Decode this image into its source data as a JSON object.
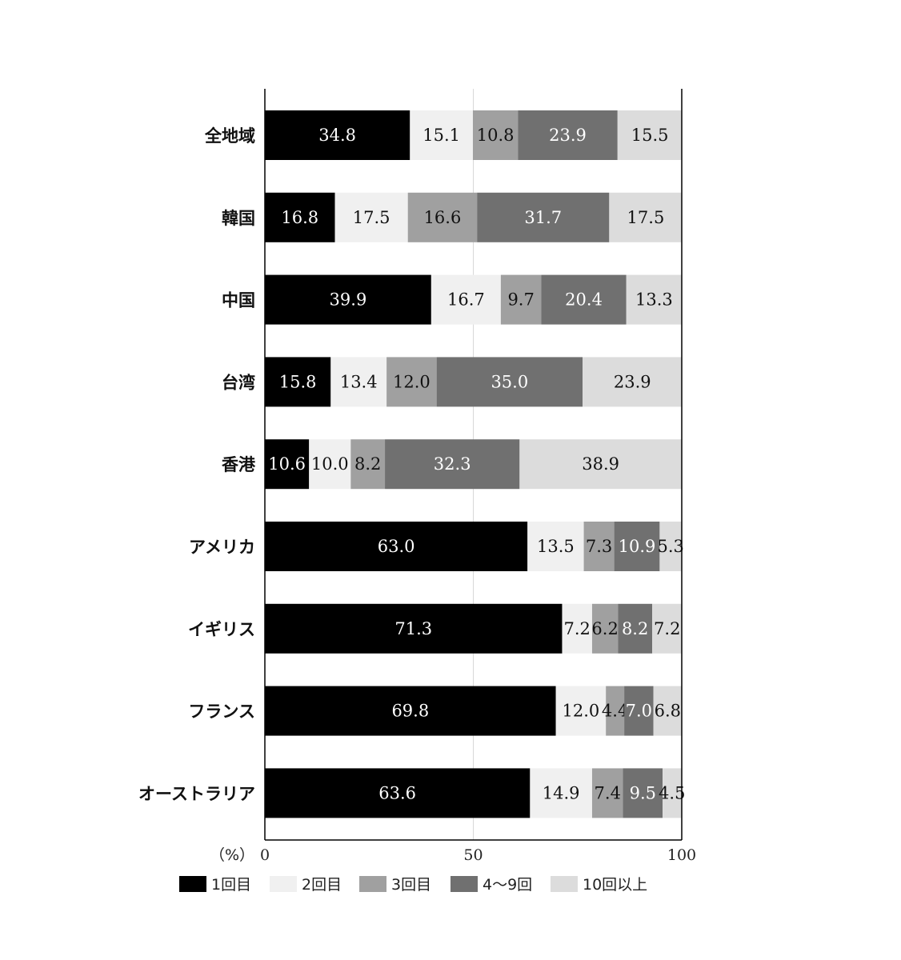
{
  "chart_data": {
    "type": "bar",
    "orientation": "horizontal",
    "stacked": true,
    "unit_label": "（%）",
    "xlim": [
      0,
      100
    ],
    "xticks": [
      "0",
      "50",
      "100"
    ],
    "grid": "vertical line at 50",
    "legend_position": "bottom",
    "categories": [
      "全地域",
      "韓国",
      "中国",
      "台湾",
      "香港",
      "アメリカ",
      "イギリス",
      "フランス",
      "オーストラリア"
    ],
    "series": [
      {
        "name": "1回目",
        "color": "#000000",
        "text_color": "#ffffff",
        "values": [
          34.8,
          16.8,
          39.9,
          15.8,
          10.6,
          63.0,
          71.3,
          69.8,
          63.6
        ]
      },
      {
        "name": "2回目",
        "color": "#f0f0f0",
        "text_color": "#111111",
        "values": [
          15.1,
          17.5,
          16.7,
          13.4,
          10.0,
          13.5,
          7.2,
          12.0,
          14.9
        ]
      },
      {
        "name": "3回目",
        "color": "#a0a0a0",
        "text_color": "#111111",
        "values": [
          10.8,
          16.6,
          9.7,
          12.0,
          8.2,
          7.3,
          6.2,
          4.4,
          7.4
        ]
      },
      {
        "name": "4〜9回",
        "color": "#707070",
        "text_color": "#ffffff",
        "values": [
          23.9,
          31.7,
          20.4,
          35.0,
          32.3,
          10.9,
          8.2,
          7.0,
          9.5
        ]
      },
      {
        "name": "10回以上",
        "color": "#dcdcdc",
        "text_color": "#111111",
        "values": [
          15.5,
          17.5,
          13.3,
          23.9,
          38.9,
          5.3,
          7.2,
          6.8,
          4.5
        ]
      }
    ]
  }
}
